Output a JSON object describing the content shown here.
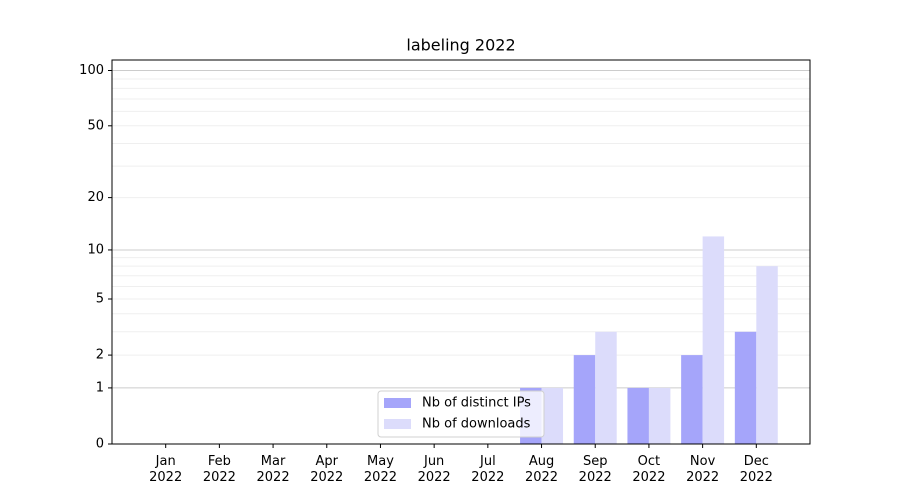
{
  "chart_data": {
    "type": "bar",
    "title": "labeling 2022",
    "categories": [
      [
        "Jan",
        "2022"
      ],
      [
        "Feb",
        "2022"
      ],
      [
        "Mar",
        "2022"
      ],
      [
        "Apr",
        "2022"
      ],
      [
        "May",
        "2022"
      ],
      [
        "Jun",
        "2022"
      ],
      [
        "Jul",
        "2022"
      ],
      [
        "Aug",
        "2022"
      ],
      [
        "Sep",
        "2022"
      ],
      [
        "Oct",
        "2022"
      ],
      [
        "Nov",
        "2022"
      ],
      [
        "Dec",
        "2022"
      ]
    ],
    "series": [
      {
        "name": "Nb of distinct IPs",
        "color": "#a5a5fa",
        "values": [
          0,
          0,
          0,
          0,
          0,
          0,
          0,
          1,
          2,
          1,
          2,
          3
        ]
      },
      {
        "name": "Nb of downloads",
        "color": "#dcdcfb",
        "values": [
          0,
          0,
          0,
          0,
          0,
          0,
          0,
          1,
          3,
          1,
          12,
          8
        ]
      }
    ],
    "yscale": "log1p",
    "ylim": [
      0,
      114
    ],
    "yticks": [
      0,
      1,
      2,
      5,
      10,
      20,
      50,
      100
    ],
    "y_major_grid": [
      1,
      10,
      100
    ],
    "y_minor_grid": [
      2,
      3,
      4,
      5,
      6,
      7,
      8,
      9,
      20,
      30,
      40,
      50,
      60,
      70,
      80,
      90
    ],
    "legend": "lower center"
  }
}
